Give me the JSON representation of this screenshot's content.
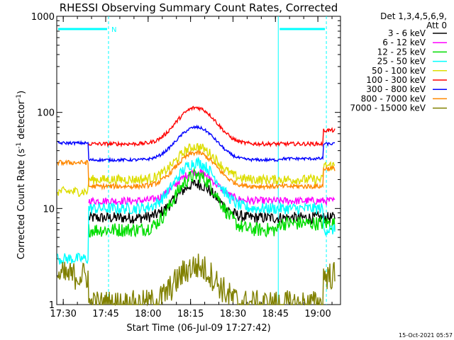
{
  "chart_data": {
    "type": "line",
    "title": "RHESSI Observing Summary Count Rates, Corrected",
    "xlabel": "Start Time (06-Jul-09 17:27:42)",
    "ylabel_main": "Corrected Count Rate (s",
    "ylabel_sup1": "-1",
    "ylabel_mid": " detector",
    "ylabel_sup2": "-1",
    "ylabel_end": ")",
    "y_scale": "log",
    "ylim": [
      1,
      1000
    ],
    "xlim": [
      "17:27:42",
      "19:08:00"
    ],
    "x_ticks": [
      "17:30",
      "17:45",
      "18:00",
      "18:15",
      "18:30",
      "18:45",
      "19:00"
    ],
    "y_ticks": [
      "1",
      "10",
      "100",
      "1000"
    ],
    "legend_header_1": "Det 1,3,4,5,6,9,",
    "legend_header_2": "Att 0",
    "legend_position": "top-right",
    "footer_date": "15-Oct-2021 05:57",
    "night_marker": "N",
    "series": [
      {
        "name": "3 - 6 keV",
        "color": "#000000",
        "pre": 0,
        "base": 8,
        "peak": 18,
        "post": 8,
        "postStart": 0,
        "noise": 0.12
      },
      {
        "name": "6 - 12 keV",
        "color": "#ff00ff",
        "pre": 0,
        "base": 12,
        "peak": 24,
        "post": 12,
        "postStart": 0,
        "noise": 0.08
      },
      {
        "name": "12 - 25 keV",
        "color": "#00dd00",
        "pre": 0,
        "base": 6,
        "peak": 22,
        "post": 7,
        "postStart": 0,
        "noise": 0.15
      },
      {
        "name": "25 - 50 keV",
        "color": "#00ffff",
        "pre": 3,
        "base": 10,
        "peak": 30,
        "post": 10,
        "postStart": 6,
        "noise": 0.12
      },
      {
        "name": "50 - 100 keV",
        "color": "#dddd00",
        "pre": 15,
        "base": 20,
        "peak": 44,
        "post": 20,
        "postStart": 28,
        "noise": 0.1
      },
      {
        "name": "100 - 300 keV",
        "color": "#ff0000",
        "pre": 0,
        "base": 47,
        "peak": 112,
        "post": 47,
        "postStart": 65,
        "noise": 0.04
      },
      {
        "name": "300 - 800 keV",
        "color": "#0000ff",
        "pre": 48,
        "base": 32,
        "peak": 70,
        "post": 33,
        "postStart": 47,
        "noise": 0.03
      },
      {
        "name": "800 - 7000 keV",
        "color": "#ff8800",
        "pre": 30,
        "base": 17,
        "peak": 38,
        "post": 17,
        "postStart": 26,
        "noise": 0.05
      },
      {
        "name": "7000 - 15000 keV",
        "color": "#808000",
        "pre": 2,
        "base": 1,
        "peak": 2.5,
        "post": 1,
        "postStart": 2,
        "noise": 0.3
      }
    ]
  }
}
